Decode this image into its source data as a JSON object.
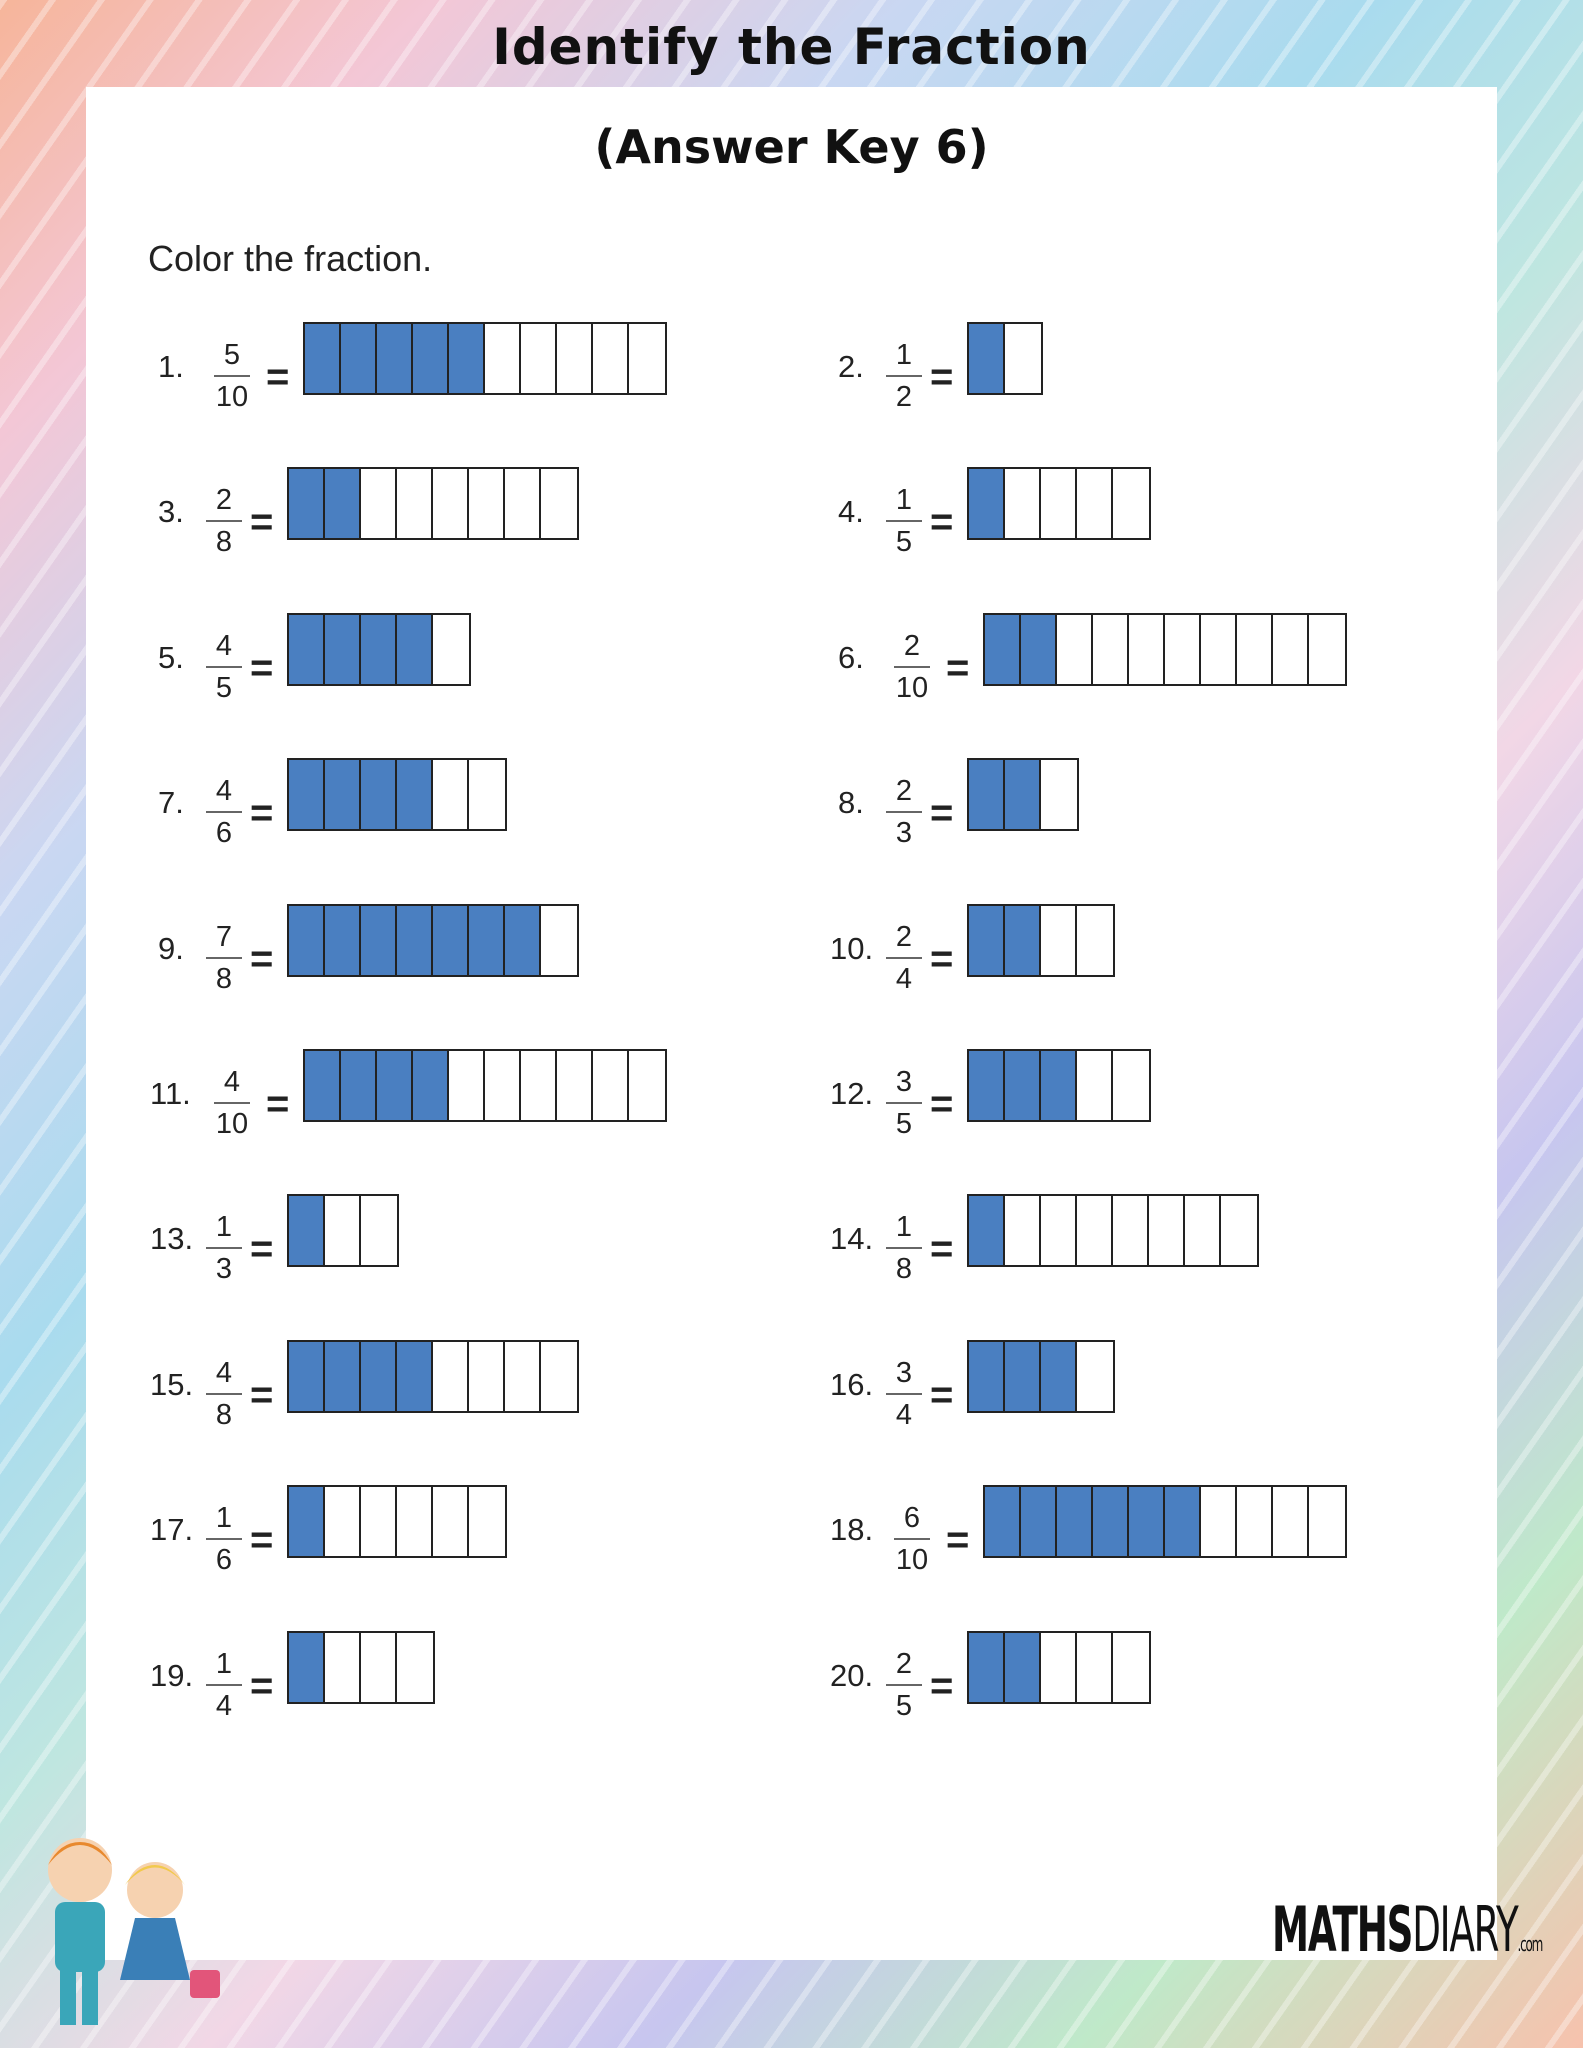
{
  "title": "Identify the Fraction",
  "subtitle": "(Answer Key 6)",
  "instruction": "Color the fraction.",
  "equals": "=",
  "fill_color": "#4a7fc1",
  "logo": {
    "bold": "MATHS",
    "light": "DIARY",
    ".com": ".com"
  },
  "problems": [
    {
      "label": "1.",
      "num": "5",
      "den": "10"
    },
    {
      "label": "2.",
      "num": "1",
      "den": "2"
    },
    {
      "label": "3.",
      "num": "2",
      "den": "8"
    },
    {
      "label": "4.",
      "num": "1",
      "den": "5"
    },
    {
      "label": "5.",
      "num": "4",
      "den": "5"
    },
    {
      "label": "6.",
      "num": "2",
      "den": "10"
    },
    {
      "label": "7.",
      "num": "4",
      "den": "6"
    },
    {
      "label": "8.",
      "num": "2",
      "den": "3"
    },
    {
      "label": "9.",
      "num": "7",
      "den": "8"
    },
    {
      "label": "10.",
      "num": "2",
      "den": "4"
    },
    {
      "label": "11.",
      "num": "4",
      "den": "10"
    },
    {
      "label": "12.",
      "num": "3",
      "den": "5"
    },
    {
      "label": "13.",
      "num": "1",
      "den": "3"
    },
    {
      "label": "14.",
      "num": "1",
      "den": "8"
    },
    {
      "label": "15.",
      "num": "4",
      "den": "8"
    },
    {
      "label": "16.",
      "num": "3",
      "den": "4"
    },
    {
      "label": "17.",
      "num": "1",
      "den": "6"
    },
    {
      "label": "18.",
      "num": "6",
      "den": "10"
    },
    {
      "label": "19.",
      "num": "1",
      "den": "4"
    },
    {
      "label": "20.",
      "num": "2",
      "den": "5"
    }
  ]
}
